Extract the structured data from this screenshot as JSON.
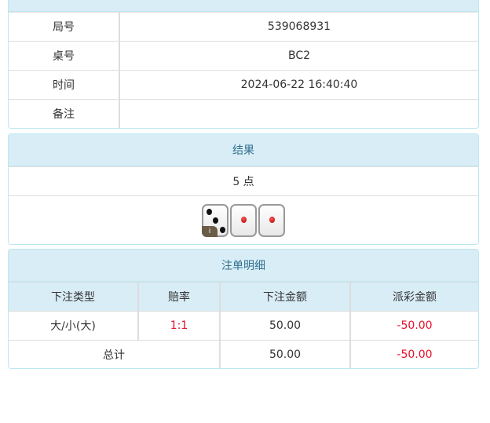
{
  "info": {
    "rows": [
      {
        "label": "局号",
        "value": "539068931"
      },
      {
        "label": "桌号",
        "value": "BC2"
      },
      {
        "label": "时间",
        "value": "2024-06-22 16:40:40"
      },
      {
        "label": "备注",
        "value": ""
      }
    ]
  },
  "result": {
    "title": "结果",
    "text": "5 点",
    "dice": [
      3,
      1,
      1
    ],
    "info_badge": "i"
  },
  "bets": {
    "title": "注单明细",
    "columns": [
      "下注类型",
      "赔率",
      "下注金额",
      "派彩金额"
    ],
    "rows": [
      {
        "type": "大/小(大)",
        "odds": "1:1",
        "amount": "50.00",
        "payout": "-50.00"
      }
    ],
    "total": {
      "label": "总计",
      "amount": "50.00",
      "payout": "-50.00"
    }
  },
  "colors": {
    "header_bg": "#d9edf7",
    "negative": "#e8102a",
    "border": "#bce8f1"
  }
}
